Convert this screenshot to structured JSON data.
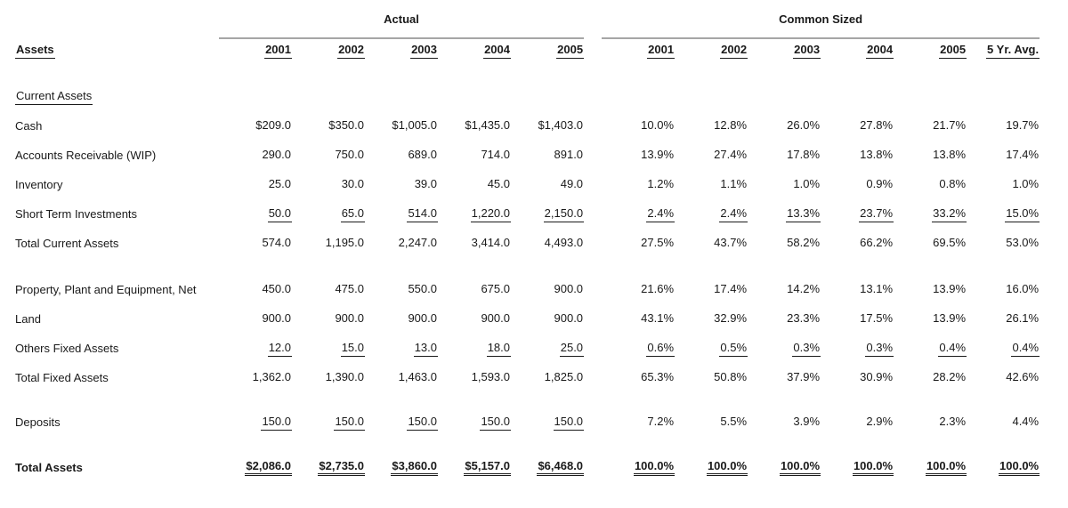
{
  "page": {
    "background_color": "#ffffff",
    "text_color": "#1a1a1a",
    "rule_color": "#a6a6a6"
  },
  "table": {
    "group_headers": [
      {
        "label": "Actual"
      },
      {
        "label": "Common Sized"
      }
    ],
    "row_header_label": "Assets",
    "actual_years": [
      "2001",
      "2002",
      "2003",
      "2004",
      "2005"
    ],
    "common_years": [
      "2001",
      "2002",
      "2003",
      "2004",
      "2005",
      "5 Yr. Avg."
    ],
    "rows": [
      {
        "type": "section",
        "label": "Current Assets"
      },
      {
        "type": "item",
        "label": "Cash",
        "actual": [
          "$209.0",
          "$350.0",
          "$1,005.0",
          "$1,435.0",
          "$1,403.0"
        ],
        "common": [
          "10.0%",
          "12.8%",
          "26.0%",
          "27.8%",
          "21.7%",
          "19.7%"
        ],
        "underline_actual": "none",
        "underline_common": "none"
      },
      {
        "type": "item",
        "label": "Accounts Receivable (WIP)",
        "actual": [
          "290.0",
          "750.0",
          "689.0",
          "714.0",
          "891.0"
        ],
        "common": [
          "13.9%",
          "27.4%",
          "17.8%",
          "13.8%",
          "13.8%",
          "17.4%"
        ],
        "underline_actual": "none",
        "underline_common": "none"
      },
      {
        "type": "item",
        "label": "Inventory",
        "actual": [
          "25.0",
          "30.0",
          "39.0",
          "45.0",
          "49.0"
        ],
        "common": [
          "1.2%",
          "1.1%",
          "1.0%",
          "0.9%",
          "0.8%",
          "1.0%"
        ],
        "underline_actual": "none",
        "underline_common": "none"
      },
      {
        "type": "item",
        "label": "Short Term Investments",
        "actual": [
          "50.0",
          "65.0",
          "514.0",
          "1,220.0",
          "2,150.0"
        ],
        "common": [
          "2.4%",
          "2.4%",
          "13.3%",
          "23.7%",
          "33.2%",
          "15.0%"
        ],
        "underline_actual": "single",
        "underline_common": "single"
      },
      {
        "type": "item",
        "label": "Total Current Assets",
        "actual": [
          "574.0",
          "1,195.0",
          "2,247.0",
          "3,414.0",
          "4,493.0"
        ],
        "common": [
          "27.5%",
          "43.7%",
          "58.2%",
          "66.2%",
          "69.5%",
          "53.0%"
        ],
        "underline_actual": "none",
        "underline_common": "none"
      },
      {
        "type": "spacer",
        "height": 19
      },
      {
        "type": "item",
        "label": "Property, Plant and Equipment, Net",
        "actual": [
          "450.0",
          "475.0",
          "550.0",
          "675.0",
          "900.0"
        ],
        "common": [
          "21.6%",
          "17.4%",
          "14.2%",
          "13.1%",
          "13.9%",
          "16.0%"
        ],
        "underline_actual": "none",
        "underline_common": "none"
      },
      {
        "type": "item",
        "label": "Land",
        "actual": [
          "900.0",
          "900.0",
          "900.0",
          "900.0",
          "900.0"
        ],
        "common": [
          "43.1%",
          "32.9%",
          "23.3%",
          "17.5%",
          "13.9%",
          "26.1%"
        ],
        "underline_actual": "none",
        "underline_common": "none"
      },
      {
        "type": "item",
        "label": "Others Fixed Assets",
        "actual": [
          "12.0",
          "15.0",
          "13.0",
          "18.0",
          "25.0"
        ],
        "common": [
          "0.6%",
          "0.5%",
          "0.3%",
          "0.3%",
          "0.4%",
          "0.4%"
        ],
        "underline_actual": "single",
        "underline_common": "single"
      },
      {
        "type": "item",
        "label": "Total Fixed Assets",
        "actual": [
          "1,362.0",
          "1,390.0",
          "1,463.0",
          "1,593.0",
          "1,825.0"
        ],
        "common": [
          "65.3%",
          "50.8%",
          "37.9%",
          "30.9%",
          "28.2%",
          "42.6%"
        ],
        "underline_actual": "none",
        "underline_common": "none"
      },
      {
        "type": "spacer",
        "height": 17
      },
      {
        "type": "item",
        "label": "Deposits",
        "actual": [
          "150.0",
          "150.0",
          "150.0",
          "150.0",
          "150.0"
        ],
        "common": [
          "7.2%",
          "5.5%",
          "3.9%",
          "2.9%",
          "2.3%",
          "4.4%"
        ],
        "underline_actual": "single",
        "underline_common": "none"
      },
      {
        "type": "spacer",
        "height": 18
      },
      {
        "type": "total",
        "label": "Total Assets",
        "actual": [
          "$2,086.0",
          "$2,735.0",
          "$3,860.0",
          "$5,157.0",
          "$6,468.0"
        ],
        "common": [
          "100.0%",
          "100.0%",
          "100.0%",
          "100.0%",
          "100.0%",
          "100.0%"
        ],
        "underline_actual": "double",
        "underline_common": "double"
      }
    ]
  }
}
